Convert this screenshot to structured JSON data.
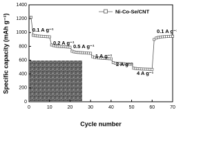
{
  "chart_data": {
    "type": "line",
    "x_label": "Cycle number",
    "y_label": "Specific capacity (mAh g⁻¹)",
    "x": [
      1,
      2,
      3,
      4,
      5,
      6,
      7,
      8,
      9,
      10,
      11,
      12,
      13,
      14,
      15,
      16,
      17,
      18,
      19,
      20,
      21,
      22,
      23,
      24,
      25,
      26,
      27,
      28,
      29,
      30,
      31,
      32,
      33,
      34,
      35,
      36,
      37,
      38,
      39,
      40,
      41,
      42,
      43,
      44,
      45,
      46,
      47,
      48,
      49,
      50,
      51,
      52,
      53,
      54,
      55,
      56,
      57,
      58,
      59,
      60,
      61,
      62,
      63,
      64,
      65,
      66,
      67,
      68,
      69,
      70
    ],
    "series": [
      {
        "name": "Ni-Co-Se/CNT",
        "color": "#555555",
        "values": [
          1220,
          960,
          955,
          950,
          948,
          946,
          944,
          942,
          940,
          938,
          820,
          810,
          805,
          800,
          798,
          796,
          794,
          792,
          790,
          788,
          730,
          720,
          715,
          712,
          710,
          708,
          706,
          704,
          702,
          700,
          650,
          640,
          636,
          632,
          630,
          628,
          626,
          624,
          622,
          620,
          565,
          558,
          555,
          553,
          551,
          549,
          547,
          545,
          543,
          541,
          485,
          480,
          477,
          475,
          473,
          472,
          471,
          470,
          469,
          468,
          900,
          920,
          930,
          935,
          938,
          940,
          942,
          944,
          945,
          946
        ]
      }
    ],
    "annotations": [
      "0.1 A g⁻¹",
      "0.2 A g⁻¹",
      "0.5 A g⁻¹",
      "1 A g⁻¹",
      "2 A g⁻¹",
      "4 A g⁻¹",
      "0.1 A g⁻¹"
    ],
    "xlim": [
      0,
      70
    ],
    "xticks": [
      0,
      10,
      20,
      30,
      40,
      50,
      60,
      70
    ],
    "ylim": [
      0,
      1400
    ],
    "yticks": [
      0,
      200,
      400,
      600,
      800,
      1000,
      1200,
      1400
    ],
    "legend": "top-right"
  }
}
